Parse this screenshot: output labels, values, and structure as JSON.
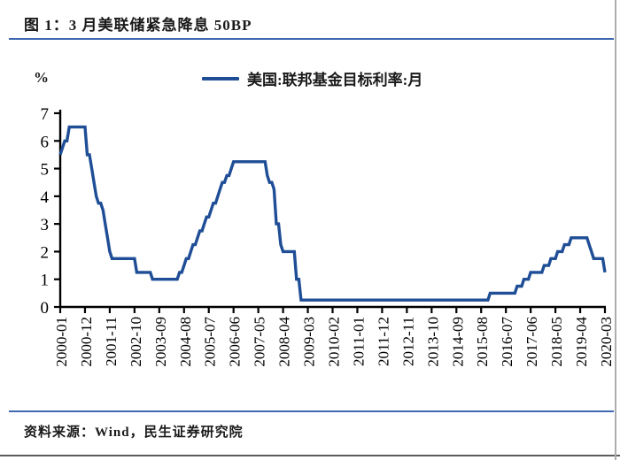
{
  "page": {
    "title": "图 1：3 月美联储紧急降息 50BP",
    "source": "资料来源：Wind，民生证券研究院"
  },
  "chart_data": {
    "type": "line",
    "title": "图 1：3 月美联储紧急降息 50BP",
    "ylabel": "%",
    "xlabel": "",
    "ylim": [
      0,
      7
    ],
    "yticks": [
      0,
      1,
      2,
      3,
      4,
      5,
      6,
      7
    ],
    "grid": false,
    "legend_position": "top",
    "line_color": "#1f4e96",
    "axis_color": "#000000",
    "x_unit": "month",
    "x_start": "2000-01",
    "x_end": "2020-03",
    "xtick_months": [
      0,
      11,
      22,
      33,
      44,
      55,
      66,
      77,
      88,
      99,
      110,
      121,
      132,
      143,
      154,
      165,
      176,
      187,
      198,
      209,
      220,
      231,
      242
    ],
    "xtick_labels": [
      "2000-01",
      "2000-12",
      "2001-11",
      "2002-10",
      "2003-09",
      "2004-08",
      "2005-07",
      "2006-06",
      "2007-05",
      "2008-04",
      "2009-03",
      "2010-02",
      "2011-01",
      "2011-12",
      "2012-11",
      "2013-10",
      "2014-09",
      "2015-08",
      "2016-07",
      "2017-06",
      "2018-05",
      "2019-04",
      "2020-03"
    ],
    "series": [
      {
        "name": "美国:联邦基金目标利率:月",
        "values": [
          5.5,
          5.75,
          6,
          6,
          6.5,
          6.5,
          6.5,
          6.5,
          6.5,
          6.5,
          6.5,
          6.5,
          5.5,
          5.5,
          5,
          4.5,
          4,
          3.75,
          3.75,
          3.5,
          3,
          2.5,
          2,
          1.75,
          1.75,
          1.75,
          1.75,
          1.75,
          1.75,
          1.75,
          1.75,
          1.75,
          1.75,
          1.75,
          1.25,
          1.25,
          1.25,
          1.25,
          1.25,
          1.25,
          1.25,
          1,
          1,
          1,
          1,
          1,
          1,
          1,
          1,
          1,
          1,
          1,
          1,
          1.25,
          1.25,
          1.5,
          1.75,
          1.75,
          2,
          2.25,
          2.25,
          2.5,
          2.75,
          2.75,
          3,
          3.25,
          3.25,
          3.5,
          3.75,
          3.75,
          4,
          4.25,
          4.5,
          4.5,
          4.75,
          4.75,
          5,
          5.25,
          5.25,
          5.25,
          5.25,
          5.25,
          5.25,
          5.25,
          5.25,
          5.25,
          5.25,
          5.25,
          5.25,
          5.25,
          5.25,
          5.25,
          4.75,
          4.5,
          4.5,
          4.25,
          3,
          3,
          2.25,
          2,
          2,
          2,
          2,
          2,
          2,
          1,
          1,
          0.25,
          0.25,
          0.25,
          0.25,
          0.25,
          0.25,
          0.25,
          0.25,
          0.25,
          0.25,
          0.25,
          0.25,
          0.25,
          0.25,
          0.25,
          0.25,
          0.25,
          0.25,
          0.25,
          0.25,
          0.25,
          0.25,
          0.25,
          0.25,
          0.25,
          0.25,
          0.25,
          0.25,
          0.25,
          0.25,
          0.25,
          0.25,
          0.25,
          0.25,
          0.25,
          0.25,
          0.25,
          0.25,
          0.25,
          0.25,
          0.25,
          0.25,
          0.25,
          0.25,
          0.25,
          0.25,
          0.25,
          0.25,
          0.25,
          0.25,
          0.25,
          0.25,
          0.25,
          0.25,
          0.25,
          0.25,
          0.25,
          0.25,
          0.25,
          0.25,
          0.25,
          0.25,
          0.25,
          0.25,
          0.25,
          0.25,
          0.25,
          0.25,
          0.25,
          0.25,
          0.25,
          0.25,
          0.25,
          0.25,
          0.25,
          0.25,
          0.25,
          0.25,
          0.25,
          0.25,
          0.25,
          0.25,
          0.25,
          0.25,
          0.5,
          0.5,
          0.5,
          0.5,
          0.5,
          0.5,
          0.5,
          0.5,
          0.5,
          0.5,
          0.5,
          0.5,
          0.75,
          0.75,
          0.75,
          1,
          1,
          1,
          1.25,
          1.25,
          1.25,
          1.25,
          1.25,
          1.25,
          1.5,
          1.5,
          1.5,
          1.75,
          1.75,
          1.75,
          2,
          2,
          2,
          2.25,
          2.25,
          2.25,
          2.5,
          2.5,
          2.5,
          2.5,
          2.5,
          2.5,
          2.5,
          2.5,
          2.25,
          2,
          1.75,
          1.75,
          1.75,
          1.75,
          1.75,
          1.25
        ]
      }
    ]
  }
}
